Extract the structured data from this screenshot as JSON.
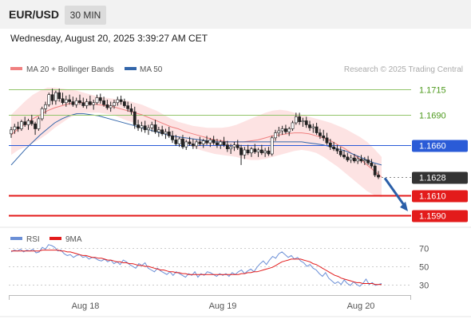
{
  "header": {
    "symbol": "EUR/USD",
    "timeframe": "30 MIN"
  },
  "timestamp": "Wednesday, August 20, 2025 3:39:27 AM CET",
  "research_credit": "Research © 2025 Trading Central",
  "colors": {
    "ma20": "#f08080",
    "ma50": "#3366aa",
    "bollinger_fill": "#fde0e0",
    "bullish_candle": "#ffffff",
    "bearish_candle": "#222222",
    "resistance": "#92c46a",
    "pivot": "#2a5bd7",
    "support": "#e31b1b",
    "current_price": "#333333",
    "rsi": "#6b8fd6",
    "rsi_ma": "#e31b1b",
    "arrow": "#2a5ea8"
  },
  "chart_data": [
    {
      "type": "line",
      "title": "",
      "legend": [
        "MA 20 + Bollinger Bands",
        "MA 50"
      ],
      "legend_position": "top-left",
      "x_tick_labels": [
        "Aug 18",
        "Aug 19",
        "Aug 20"
      ],
      "ylim": [
        1.1578,
        1.1728
      ],
      "grid": false,
      "levels": [
        {
          "label": "1.1715",
          "value": 1.1715,
          "kind": "resistance"
        },
        {
          "label": "1.1690",
          "value": 1.169,
          "kind": "resistance"
        },
        {
          "label": "1.1660",
          "value": 1.166,
          "kind": "pivot"
        },
        {
          "label": "1.1628",
          "value": 1.1628,
          "kind": "current"
        },
        {
          "label": "1.1610",
          "value": 1.161,
          "kind": "support"
        },
        {
          "label": "1.1590",
          "value": 1.159,
          "kind": "support"
        }
      ],
      "arrow": {
        "from": 1.1627,
        "to": 1.1594
      },
      "candles": [
        [
          1.1671,
          1.1678,
          1.1667,
          1.1675
        ],
        [
          1.1675,
          1.1681,
          1.1671,
          1.1678
        ],
        [
          1.1678,
          1.1683,
          1.1673,
          1.1676
        ],
        [
          1.1676,
          1.1685,
          1.1674,
          1.1683
        ],
        [
          1.1683,
          1.1688,
          1.1678,
          1.168
        ],
        [
          1.168,
          1.1686,
          1.1675,
          1.1684
        ],
        [
          1.1684,
          1.169,
          1.1679,
          1.1681
        ],
        [
          1.1681,
          1.1683,
          1.167,
          1.1676
        ],
        [
          1.1676,
          1.1688,
          1.1674,
          1.1686
        ],
        [
          1.1686,
          1.1698,
          1.1684,
          1.1696
        ],
        [
          1.1696,
          1.1703,
          1.1691,
          1.17
        ],
        [
          1.17,
          1.1712,
          1.1698,
          1.171
        ],
        [
          1.171,
          1.1716,
          1.17,
          1.1704
        ],
        [
          1.1704,
          1.1714,
          1.17,
          1.1712
        ],
        [
          1.1712,
          1.1716,
          1.1703,
          1.1706
        ],
        [
          1.1706,
          1.1712,
          1.17,
          1.1702
        ],
        [
          1.1702,
          1.1709,
          1.1698,
          1.1705
        ],
        [
          1.1705,
          1.171,
          1.17,
          1.1703
        ],
        [
          1.1703,
          1.1708,
          1.1698,
          1.17
        ],
        [
          1.17,
          1.1707,
          1.1697,
          1.1704
        ],
        [
          1.1704,
          1.171,
          1.17,
          1.1702
        ],
        [
          1.1702,
          1.1707,
          1.1697,
          1.1699
        ],
        [
          1.1699,
          1.1706,
          1.1696,
          1.1703
        ],
        [
          1.1703,
          1.1709,
          1.1699,
          1.17
        ],
        [
          1.17,
          1.1705,
          1.1695,
          1.1702
        ],
        [
          1.1702,
          1.171,
          1.17,
          1.1707
        ],
        [
          1.1707,
          1.1711,
          1.1701,
          1.1704
        ],
        [
          1.1704,
          1.1708,
          1.1698,
          1.17
        ],
        [
          1.17,
          1.1705,
          1.1695,
          1.1697
        ],
        [
          1.1697,
          1.1703,
          1.1693,
          1.1699
        ],
        [
          1.1699,
          1.1705,
          1.1696,
          1.1702
        ],
        [
          1.1702,
          1.1708,
          1.1699,
          1.1705
        ],
        [
          1.1705,
          1.1709,
          1.17,
          1.1703
        ],
        [
          1.1703,
          1.1706,
          1.1697,
          1.1699
        ],
        [
          1.1699,
          1.1703,
          1.1693,
          1.1696
        ],
        [
          1.1696,
          1.1701,
          1.169,
          1.1693
        ],
        [
          1.1693,
          1.1698,
          1.1676,
          1.168
        ],
        [
          1.168,
          1.1685,
          1.1674,
          1.1677
        ],
        [
          1.1677,
          1.1683,
          1.1673,
          1.1679
        ],
        [
          1.1679,
          1.1684,
          1.1672,
          1.1675
        ],
        [
          1.1675,
          1.168,
          1.167,
          1.1677
        ],
        [
          1.1677,
          1.1683,
          1.1673,
          1.168
        ],
        [
          1.168,
          1.1685,
          1.1671,
          1.1673
        ],
        [
          1.1673,
          1.1678,
          1.1668,
          1.1675
        ],
        [
          1.1675,
          1.1679,
          1.1669,
          1.1671
        ],
        [
          1.1671,
          1.1676,
          1.1666,
          1.1673
        ],
        [
          1.1673,
          1.1678,
          1.1667,
          1.1669
        ],
        [
          1.1669,
          1.1674,
          1.1662,
          1.1665
        ],
        [
          1.1665,
          1.167,
          1.1659,
          1.1661
        ],
        [
          1.1661,
          1.1668,
          1.1658,
          1.1666
        ],
        [
          1.1666,
          1.167,
          1.1656,
          1.1658
        ],
        [
          1.1658,
          1.1665,
          1.1655,
          1.1663
        ],
        [
          1.1663,
          1.1668,
          1.1659,
          1.1661
        ],
        [
          1.1661,
          1.1666,
          1.1656,
          1.1659
        ],
        [
          1.1659,
          1.1665,
          1.1656,
          1.1663
        ],
        [
          1.1663,
          1.1668,
          1.1659,
          1.1661
        ],
        [
          1.1661,
          1.1666,
          1.1657,
          1.1664
        ],
        [
          1.1664,
          1.1669,
          1.166,
          1.1662
        ],
        [
          1.1662,
          1.1667,
          1.1658,
          1.1665
        ],
        [
          1.1665,
          1.1669,
          1.166,
          1.1662
        ],
        [
          1.1662,
          1.1666,
          1.1657,
          1.166
        ],
        [
          1.166,
          1.1665,
          1.1656,
          1.1663
        ],
        [
          1.1663,
          1.1668,
          1.1658,
          1.166
        ],
        [
          1.166,
          1.1664,
          1.1653,
          1.1656
        ],
        [
          1.1656,
          1.1661,
          1.1651,
          1.1658
        ],
        [
          1.1658,
          1.1663,
          1.1654,
          1.166
        ],
        [
          1.166,
          1.1665,
          1.1655,
          1.1657
        ],
        [
          1.1657,
          1.166,
          1.164,
          1.165
        ],
        [
          1.165,
          1.1658,
          1.1646,
          1.1655
        ],
        [
          1.1655,
          1.166,
          1.165,
          1.1652
        ],
        [
          1.1652,
          1.1658,
          1.1648,
          1.1656
        ],
        [
          1.1656,
          1.1661,
          1.1651,
          1.1653
        ],
        [
          1.1653,
          1.1657,
          1.1648,
          1.1655
        ],
        [
          1.1655,
          1.166,
          1.165,
          1.1652
        ],
        [
          1.1652,
          1.1657,
          1.1648,
          1.1654
        ],
        [
          1.1654,
          1.1658,
          1.1649,
          1.1651
        ],
        [
          1.1651,
          1.1669,
          1.1649,
          1.1667
        ],
        [
          1.1667,
          1.1675,
          1.1664,
          1.1672
        ],
        [
          1.1672,
          1.1678,
          1.1668,
          1.1674
        ],
        [
          1.1674,
          1.1679,
          1.167,
          1.1676
        ],
        [
          1.1676,
          1.168,
          1.1671,
          1.1673
        ],
        [
          1.1673,
          1.1678,
          1.1669,
          1.1676
        ],
        [
          1.1676,
          1.1684,
          1.1674,
          1.1682
        ],
        [
          1.1682,
          1.1692,
          1.168,
          1.1688
        ],
        [
          1.1688,
          1.1692,
          1.168,
          1.1683
        ],
        [
          1.1683,
          1.1687,
          1.1678,
          1.1684
        ],
        [
          1.1684,
          1.1688,
          1.1677,
          1.168
        ],
        [
          1.168,
          1.1684,
          1.1674,
          1.1677
        ],
        [
          1.1677,
          1.1681,
          1.1672,
          1.1678
        ],
        [
          1.1678,
          1.1682,
          1.167,
          1.1672
        ],
        [
          1.1672,
          1.1676,
          1.1666,
          1.1669
        ],
        [
          1.1669,
          1.1675,
          1.1664,
          1.1667
        ],
        [
          1.1667,
          1.1672,
          1.166,
          1.1662
        ],
        [
          1.1662,
          1.1666,
          1.1655,
          1.1658
        ],
        [
          1.1658,
          1.1663,
          1.1654,
          1.1656
        ],
        [
          1.1656,
          1.166,
          1.1651,
          1.1654
        ],
        [
          1.1654,
          1.1658,
          1.1648,
          1.165
        ],
        [
          1.165,
          1.1655,
          1.1646,
          1.1648
        ],
        [
          1.1648,
          1.1652,
          1.1643,
          1.1645
        ],
        [
          1.1645,
          1.165,
          1.1642,
          1.1647
        ],
        [
          1.1647,
          1.1651,
          1.1642,
          1.1644
        ],
        [
          1.1644,
          1.1649,
          1.1641,
          1.1646
        ],
        [
          1.1646,
          1.165,
          1.1642,
          1.1644
        ],
        [
          1.1644,
          1.1648,
          1.164,
          1.1645
        ],
        [
          1.1645,
          1.1649,
          1.164,
          1.1642
        ],
        [
          1.1642,
          1.1646,
          1.1637,
          1.1639
        ],
        [
          1.1639,
          1.1641,
          1.1628,
          1.163
        ],
        [
          1.163,
          1.1634,
          1.1626,
          1.1628
        ]
      ],
      "ma20": [
        1.167,
        1.1676,
        1.1681,
        1.1686,
        1.169,
        1.1694,
        1.1697,
        1.1699,
        1.1701,
        1.1702,
        1.1702,
        1.1701,
        1.17,
        1.1699,
        1.1698,
        1.1696,
        1.1694,
        1.1692,
        1.169,
        1.1687,
        1.1684,
        1.1681,
        1.1678,
        1.1676,
        1.1673,
        1.1671,
        1.1669,
        1.1667,
        1.1665,
        1.1664,
        1.1663,
        1.1663,
        1.1663,
        1.1664,
        1.1665,
        1.1667,
        1.1669,
        1.167,
        1.1671,
        1.1672,
        1.1672,
        1.1671,
        1.1669,
        1.1667,
        1.1664,
        1.166,
        1.1656,
        1.1651,
        1.1646,
        1.164,
        1.1634,
        1.1628
      ],
      "ma50": [
        1.164,
        1.1648,
        1.1656,
        1.1663,
        1.167,
        1.1676,
        1.1682,
        1.1686,
        1.1689,
        1.1691,
        1.1691,
        1.169,
        1.1689,
        1.1687,
        1.1685,
        1.1683,
        1.1681,
        1.1679,
        1.1677,
        1.1675,
        1.1673,
        1.1671,
        1.1669,
        1.1668,
        1.1667,
        1.1666,
        1.1665,
        1.1664,
        1.1663,
        1.1663,
        1.1663,
        1.1663,
        1.1663,
        1.1663,
        1.1663,
        1.1663,
        1.1663,
        1.1663,
        1.1663,
        1.1663,
        1.1663,
        1.1662,
        1.1661,
        1.166,
        1.1658,
        1.1656,
        1.1654,
        1.1651,
        1.1648,
        1.1645,
        1.1642,
        1.164
      ],
      "bb_upper": [
        1.169,
        1.1697,
        1.1704,
        1.171,
        1.1714,
        1.1717,
        1.1717,
        1.1716,
        1.1715,
        1.1714,
        1.1712,
        1.171,
        1.1708,
        1.1707,
        1.1706,
        1.1705,
        1.1704,
        1.1702,
        1.17,
        1.1697,
        1.1694,
        1.169,
        1.1686,
        1.1683,
        1.1681,
        1.1679,
        1.1678,
        1.1677,
        1.1677,
        1.1677,
        1.1678,
        1.168,
        1.1683,
        1.1686,
        1.1689,
        1.1692,
        1.1694,
        1.1695,
        1.1694,
        1.1692,
        1.169,
        1.1688,
        1.1686,
        1.1684,
        1.1682,
        1.1679,
        1.1676,
        1.1672,
        1.1668,
        1.1663,
        1.1656,
        1.1648
      ],
      "bb_lower": [
        1.165,
        1.1655,
        1.1658,
        1.1662,
        1.1666,
        1.1671,
        1.1677,
        1.1682,
        1.1687,
        1.169,
        1.1692,
        1.1692,
        1.1692,
        1.1691,
        1.169,
        1.1687,
        1.1684,
        1.1682,
        1.168,
        1.1677,
        1.1674,
        1.1671,
        1.1668,
        1.1665,
        1.1661,
        1.1658,
        1.1655,
        1.1653,
        1.1651,
        1.165,
        1.1649,
        1.1648,
        1.1646,
        1.1645,
        1.1645,
        1.1646,
        1.1648,
        1.165,
        1.1652,
        1.1654,
        1.1655,
        1.1654,
        1.1652,
        1.1648,
        1.1643,
        1.1638,
        1.1632,
        1.1626,
        1.162,
        1.1614,
        1.161,
        1.1608
      ]
    },
    {
      "type": "line",
      "title": "",
      "legend": [
        "RSI",
        "9MA"
      ],
      "legend_position": "top-left",
      "ylim": [
        20,
        80
      ],
      "y_ticks": [
        70,
        50,
        30
      ],
      "grid": true,
      "rsi": [
        66,
        68,
        67,
        69,
        66,
        68,
        67,
        69,
        65,
        66,
        71,
        69,
        74,
        73,
        71,
        67,
        68,
        64,
        62,
        63,
        60,
        62,
        63,
        60,
        61,
        58,
        60,
        59,
        57,
        56,
        58,
        55,
        57,
        53,
        55,
        52,
        57,
        55,
        52,
        50,
        48,
        53,
        51,
        54,
        48,
        46,
        44,
        48,
        45,
        43,
        41,
        44,
        40,
        44,
        42,
        40,
        38,
        42,
        40,
        44,
        38,
        42,
        40,
        44,
        43,
        41,
        39,
        42,
        40,
        42,
        39,
        43,
        41,
        44,
        46,
        42,
        45,
        47,
        44,
        49,
        53,
        56,
        52,
        57,
        61,
        59,
        64,
        66,
        63,
        60,
        62,
        58,
        60,
        56,
        54,
        50,
        52,
        48,
        46,
        42,
        39,
        43,
        37,
        34,
        31,
        33,
        30,
        35,
        31,
        29,
        33,
        30,
        28,
        31,
        36,
        30,
        32,
        29,
        30,
        31
      ],
      "rsi_ma": [
        67,
        67,
        67,
        67,
        67,
        67,
        67,
        67,
        67,
        67,
        68,
        68,
        68,
        68,
        68,
        68,
        67,
        67,
        66,
        66,
        65,
        64,
        63,
        62,
        62,
        61,
        60,
        60,
        59,
        59,
        58,
        57,
        57,
        56,
        55,
        55,
        54,
        54,
        53,
        53,
        52,
        51,
        51,
        50,
        50,
        49,
        48,
        47,
        46,
        46,
        45,
        44,
        44,
        43,
        43,
        42,
        42,
        41,
        41,
        41,
        41,
        41,
        41,
        41,
        41,
        41,
        41,
        41,
        41,
        41,
        41,
        41,
        41,
        41,
        42,
        42,
        43,
        43,
        44,
        44,
        45,
        46,
        47,
        48,
        49,
        51,
        53,
        55,
        56,
        57,
        58,
        58,
        58,
        58,
        57,
        56,
        55,
        53,
        52,
        50,
        48,
        46,
        44,
        42,
        40,
        39,
        37,
        36,
        35,
        34,
        33,
        32,
        32,
        31,
        31,
        31,
        31,
        30,
        30,
        30
      ]
    }
  ]
}
